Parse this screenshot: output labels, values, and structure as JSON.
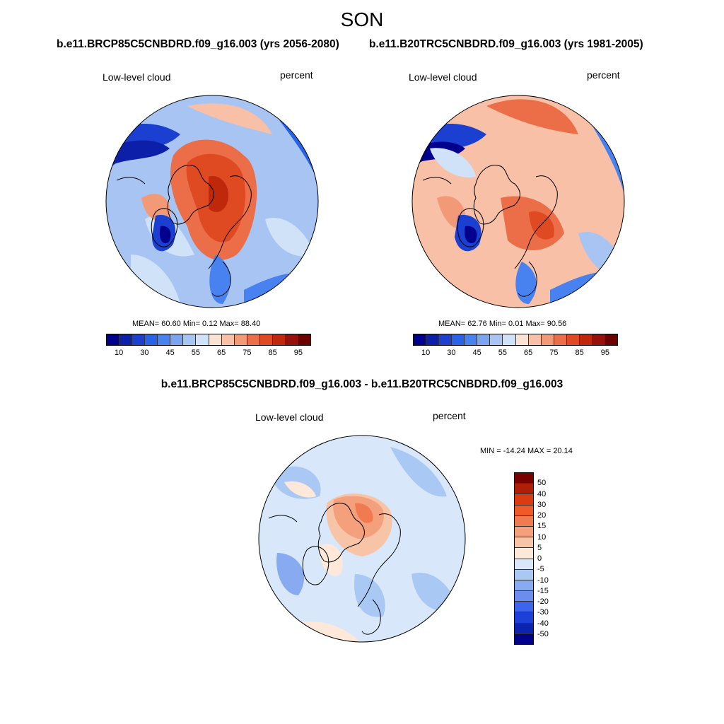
{
  "figure": {
    "season": "SON",
    "case1_title": "b.e11.BRCP85C5CNBDRD.f09_g16.003 (yrs 2056-2080)",
    "case2_title": "b.e11.B20TRC5CNBDRD.f09_g16.003 (yrs 1981-2005)",
    "diff_title": "b.e11.BRCP85C5CNBDRD.f09_g16.003 - b.e11.B20TRC5CNBDRD.f09_g16.003"
  },
  "chart_data": [
    {
      "type": "heatmap",
      "projection": "north-polar-stereographic",
      "variable_label": "Low-level cloud",
      "units": "percent",
      "stats": "MEAN=  60.60  Min=   0.12  Max=  88.40",
      "mean": 60.6,
      "min": 0.12,
      "max": 88.4,
      "colorbar_ticks": [
        "10",
        "30",
        "45",
        "55",
        "65",
        "75",
        "85",
        "95"
      ],
      "colorbar_levels": [
        10,
        20,
        30,
        40,
        45,
        50,
        55,
        60,
        65,
        70,
        75,
        80,
        85,
        90,
        95
      ],
      "colorbar_colors": [
        "#00008c",
        "#0c1fa8",
        "#1b3fd0",
        "#2862e8",
        "#4882f0",
        "#7aa4f0",
        "#a8c4f2",
        "#cfe2f8",
        "#fbe3d4",
        "#f8c0a6",
        "#f29a78",
        "#ec6e48",
        "#e04a22",
        "#c0280c",
        "#98100a",
        "#6a0000"
      ]
    },
    {
      "type": "heatmap",
      "projection": "north-polar-stereographic",
      "variable_label": "Low-level cloud",
      "units": "percent",
      "stats": "MEAN=  62.76  Min=   0.01  Max=  90.56",
      "mean": 62.76,
      "min": 0.01,
      "max": 90.56,
      "colorbar_ticks": [
        "10",
        "30",
        "45",
        "55",
        "65",
        "75",
        "85",
        "95"
      ],
      "colorbar_levels": [
        10,
        20,
        30,
        40,
        45,
        50,
        55,
        60,
        65,
        70,
        75,
        80,
        85,
        90,
        95
      ],
      "colorbar_colors": [
        "#00008c",
        "#0c1fa8",
        "#1b3fd0",
        "#2862e8",
        "#4882f0",
        "#7aa4f0",
        "#a8c4f2",
        "#cfe2f8",
        "#fbe3d4",
        "#f8c0a6",
        "#f29a78",
        "#ec6e48",
        "#e04a22",
        "#c0280c",
        "#98100a",
        "#6a0000"
      ]
    },
    {
      "type": "heatmap",
      "projection": "north-polar-stereographic",
      "variable_label": "Low-level cloud",
      "units": "percent",
      "stats": "MIN = -14.24 MAX =  20.14",
      "min": -14.24,
      "max": 20.14,
      "colorbar_ticks": [
        "50",
        "40",
        "30",
        "20",
        "15",
        "10",
        "5",
        "0",
        "-5",
        "-10",
        "-15",
        "-20",
        "-30",
        "-40",
        "-50"
      ],
      "colorbar_colors": [
        "#7a0000",
        "#b01e08",
        "#de3a12",
        "#f05a28",
        "#f27a50",
        "#f4a07c",
        "#f8c4a8",
        "#fde8da",
        "#d8e8fa",
        "#aac8f4",
        "#88aaf0",
        "#6c8cee",
        "#3c64ec",
        "#1c40d8",
        "#0c22b0",
        "#00008a"
      ]
    }
  ]
}
